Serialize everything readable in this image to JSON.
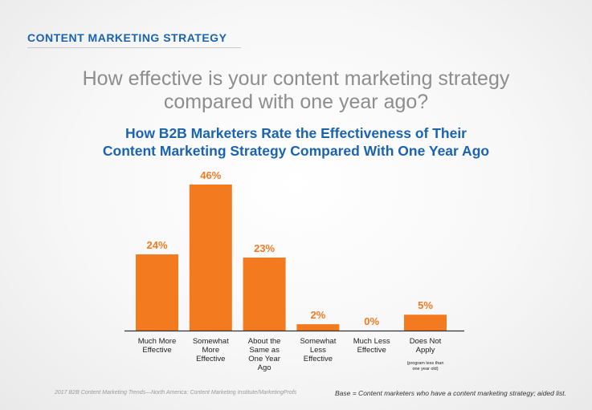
{
  "header": {
    "section_title": "CONTENT MARKETING STRATEGY"
  },
  "question": {
    "line1": "How effective is your content marketing strategy",
    "line2": "compared with one year ago?"
  },
  "chart_data": {
    "type": "bar",
    "title_lines": [
      "How B2B Marketers Rate the Effectiveness of Their",
      "Content Marketing Strategy Compared With One Year Ago"
    ],
    "categories": [
      [
        "Much More",
        "Effective"
      ],
      [
        "Somewhat",
        "More",
        "Effective"
      ],
      [
        "About the",
        "Same as",
        "One Year",
        "Ago"
      ],
      [
        "Somewhat",
        "Less",
        "Effective"
      ],
      [
        "Much Less",
        "Effective"
      ],
      [
        "Does Not",
        "Apply"
      ]
    ],
    "category_notes": [
      "",
      "",
      "",
      "",
      "",
      "(program less than one year old)"
    ],
    "values": [
      24,
      46,
      23,
      2,
      0,
      5
    ],
    "value_labels": [
      "24%",
      "46%",
      "23%",
      "2%",
      "0%",
      "5%"
    ],
    "unit": "%",
    "ylim": [
      0,
      46
    ],
    "grid": false,
    "legend": "none",
    "colors": {
      "bar": "#f47a20",
      "value_label": "#f47a20",
      "axis": "#333333",
      "category_label": "#222222"
    }
  },
  "footer": {
    "source": "2017 B2B Content Marketing Trends—North America: Content Marketing Institute/MarketingProfs",
    "base": "Base = Content marketers who have a content marketing strategy; aided list."
  }
}
